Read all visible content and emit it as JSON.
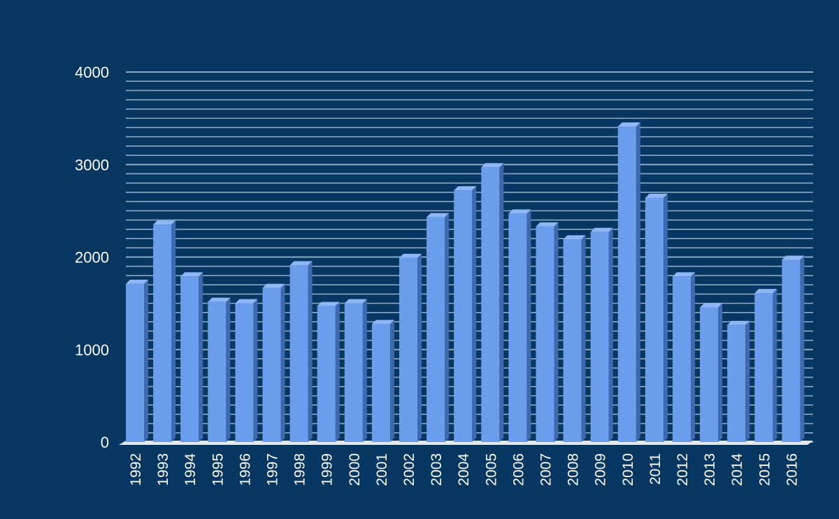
{
  "chart_data": {
    "type": "bar",
    "title": "",
    "xlabel": "",
    "ylabel": "",
    "categories": [
      "1992",
      "1993",
      "1994",
      "1995",
      "1996",
      "1997",
      "1998",
      "1999",
      "2000",
      "2001",
      "2002",
      "2003",
      "2004",
      "2005",
      "2006",
      "2007",
      "2008",
      "2009",
      "2010",
      "2011",
      "2012",
      "2013",
      "2014",
      "2015",
      "2016"
    ],
    "values": [
      1710,
      2350,
      1790,
      1515,
      1500,
      1665,
      1910,
      1470,
      1500,
      1275,
      1990,
      2430,
      2720,
      2970,
      2470,
      2330,
      2190,
      2270,
      3410,
      2640,
      1790,
      1455,
      1265,
      1610,
      1970
    ],
    "ylim": [
      0,
      4000
    ],
    "yticks": [
      0,
      1000,
      2000,
      3000,
      4000
    ],
    "minor_gridlines_per_major": 9,
    "grid": true,
    "legend": "none",
    "style": "3d-column",
    "colors": {
      "background": "#063763",
      "bar_front": "#6b9ded",
      "bar_top": "#8fb7f5",
      "bar_side": "#3f69ad",
      "gridline": "#a8bed6",
      "floor": "#e6e9ee",
      "text": "#ffffff"
    }
  }
}
